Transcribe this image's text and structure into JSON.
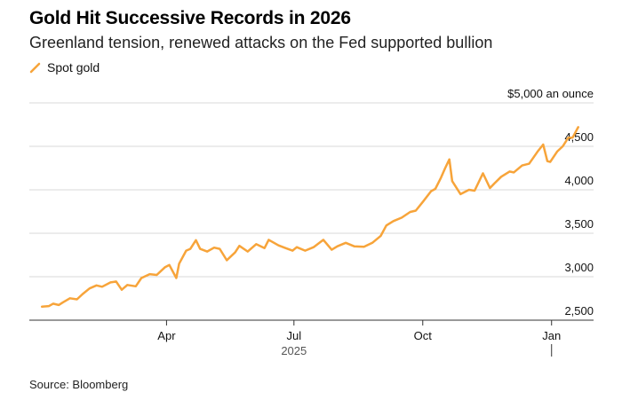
{
  "header": {
    "title": "Gold Hit Successive Records in 2026",
    "subtitle": "Greenland tension, renewed attacks on the Fed supported bullion"
  },
  "legend": {
    "label": "Spot gold"
  },
  "footer": {
    "source": "Source: Bloomberg"
  },
  "colors": {
    "series": "#F7A43A",
    "grid": "#d9d9d9",
    "axis": "#333333",
    "text": "#111111"
  },
  "chart_data": {
    "type": "line",
    "unit_label": "$5,000 an ounce",
    "x_ticks": [
      {
        "date": "2025-04-01",
        "label": "Apr"
      },
      {
        "date": "2025-07-01",
        "label": "Jul"
      },
      {
        "date": "2025-10-01",
        "label": "Oct"
      },
      {
        "date": "2026-01-01",
        "label": "Jan"
      }
    ],
    "year_labels": [
      {
        "date": "2025-07-01",
        "label": "2025"
      }
    ],
    "y_ticks": [
      {
        "value": 5000,
        "label": "$5,000 an ounce"
      },
      {
        "value": 4500,
        "label": "4,500"
      },
      {
        "value": 4000,
        "label": "4,000"
      },
      {
        "value": 3500,
        "label": "3,500"
      },
      {
        "value": 3000,
        "label": "3,000"
      },
      {
        "value": 2500,
        "label": "2,500"
      }
    ],
    "ylim": [
      2500,
      5000
    ],
    "xlim": [
      "2024-12-24",
      "2026-01-31"
    ],
    "grid": true,
    "legend_position": "top-left",
    "series": [
      {
        "name": "Spot gold",
        "points": [
          [
            "2025-01-02",
            2655
          ],
          [
            "2025-01-07",
            2662
          ],
          [
            "2025-01-10",
            2690
          ],
          [
            "2025-01-14",
            2675
          ],
          [
            "2025-01-17",
            2705
          ],
          [
            "2025-01-22",
            2752
          ],
          [
            "2025-01-27",
            2740
          ],
          [
            "2025-01-31",
            2800
          ],
          [
            "2025-02-05",
            2865
          ],
          [
            "2025-02-10",
            2900
          ],
          [
            "2025-02-14",
            2885
          ],
          [
            "2025-02-20",
            2935
          ],
          [
            "2025-02-24",
            2945
          ],
          [
            "2025-02-28",
            2850
          ],
          [
            "2025-03-04",
            2905
          ],
          [
            "2025-03-10",
            2890
          ],
          [
            "2025-03-14",
            2985
          ],
          [
            "2025-03-20",
            3030
          ],
          [
            "2025-03-25",
            3020
          ],
          [
            "2025-03-31",
            3110
          ],
          [
            "2025-04-03",
            3135
          ],
          [
            "2025-04-08",
            2985
          ],
          [
            "2025-04-10",
            3150
          ],
          [
            "2025-04-15",
            3300
          ],
          [
            "2025-04-18",
            3320
          ],
          [
            "2025-04-22",
            3420
          ],
          [
            "2025-04-25",
            3320
          ],
          [
            "2025-04-30",
            3290
          ],
          [
            "2025-05-05",
            3335
          ],
          [
            "2025-05-09",
            3320
          ],
          [
            "2025-05-14",
            3190
          ],
          [
            "2025-05-20",
            3280
          ],
          [
            "2025-05-23",
            3355
          ],
          [
            "2025-05-29",
            3290
          ],
          [
            "2025-06-04",
            3375
          ],
          [
            "2025-06-10",
            3330
          ],
          [
            "2025-06-13",
            3425
          ],
          [
            "2025-06-20",
            3360
          ],
          [
            "2025-06-25",
            3330
          ],
          [
            "2025-06-30",
            3300
          ],
          [
            "2025-07-03",
            3340
          ],
          [
            "2025-07-09",
            3300
          ],
          [
            "2025-07-15",
            3340
          ],
          [
            "2025-07-22",
            3425
          ],
          [
            "2025-07-28",
            3310
          ],
          [
            "2025-08-01",
            3350
          ],
          [
            "2025-08-07",
            3390
          ],
          [
            "2025-08-13",
            3350
          ],
          [
            "2025-08-20",
            3345
          ],
          [
            "2025-08-26",
            3390
          ],
          [
            "2025-09-01",
            3470
          ],
          [
            "2025-09-05",
            3590
          ],
          [
            "2025-09-10",
            3640
          ],
          [
            "2025-09-16",
            3680
          ],
          [
            "2025-09-22",
            3745
          ],
          [
            "2025-09-26",
            3760
          ],
          [
            "2025-10-01",
            3860
          ],
          [
            "2025-10-07",
            3985
          ],
          [
            "2025-10-10",
            4010
          ],
          [
            "2025-10-14",
            4140
          ],
          [
            "2025-10-17",
            4250
          ],
          [
            "2025-10-20",
            4350
          ],
          [
            "2025-10-22",
            4100
          ],
          [
            "2025-10-28",
            3950
          ],
          [
            "2025-11-03",
            4000
          ],
          [
            "2025-11-07",
            3990
          ],
          [
            "2025-11-13",
            4190
          ],
          [
            "2025-11-18",
            4020
          ],
          [
            "2025-11-21",
            4070
          ],
          [
            "2025-11-26",
            4150
          ],
          [
            "2025-12-02",
            4210
          ],
          [
            "2025-12-05",
            4200
          ],
          [
            "2025-12-11",
            4280
          ],
          [
            "2025-12-16",
            4300
          ],
          [
            "2025-12-22",
            4440
          ],
          [
            "2025-12-26",
            4520
          ],
          [
            "2025-12-29",
            4330
          ],
          [
            "2025-12-31",
            4320
          ],
          [
            "2026-01-05",
            4440
          ],
          [
            "2026-01-09",
            4500
          ],
          [
            "2026-01-13",
            4600
          ],
          [
            "2026-01-16",
            4600
          ],
          [
            "2026-01-20",
            4720
          ]
        ]
      }
    ]
  }
}
